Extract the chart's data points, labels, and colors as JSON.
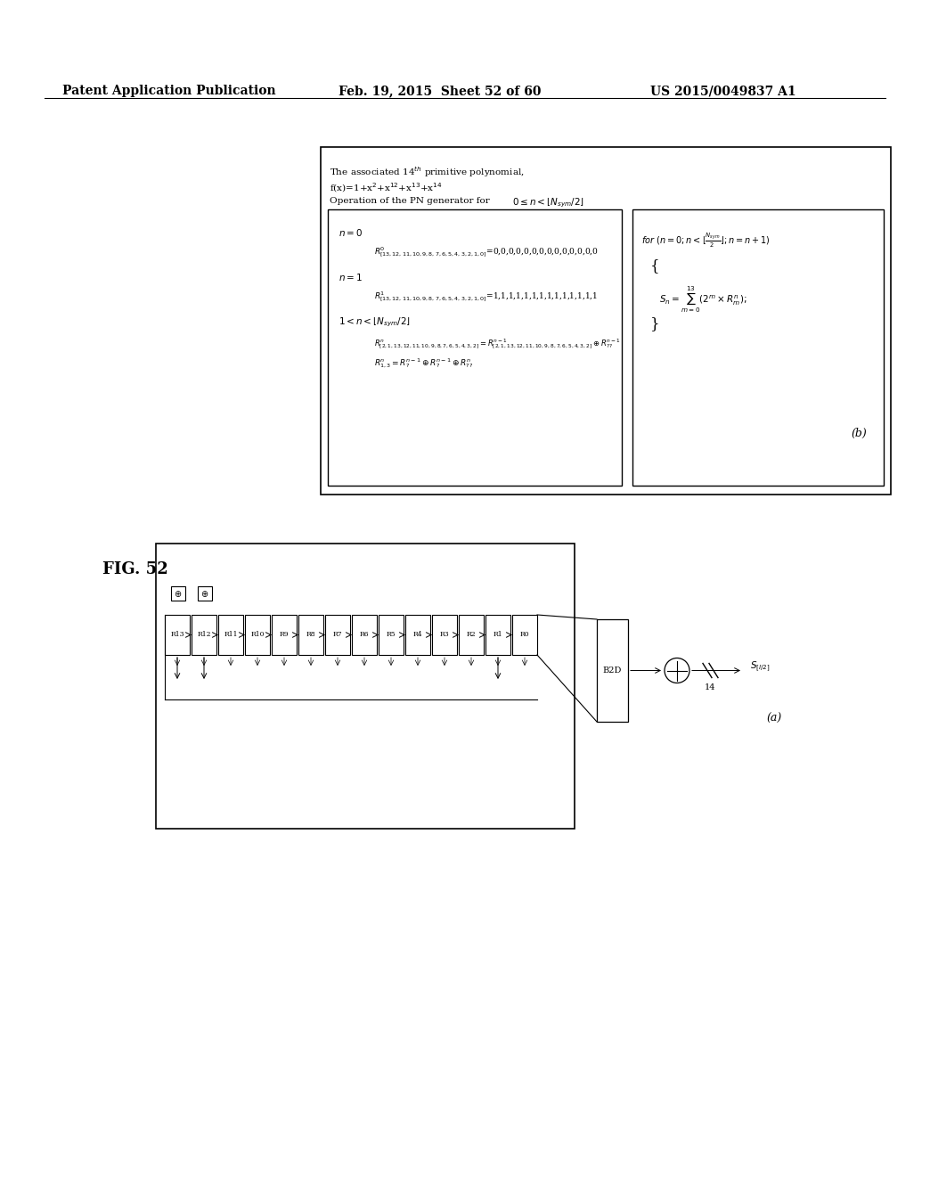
{
  "header_left": "Patent Application Publication",
  "header_mid": "Feb. 19, 2015  Sheet 52 of 60",
  "header_right": "US 2015/0049837 A1",
  "fig_label": "FIG. 52",
  "part_a_label": "(a)",
  "part_b_label": "(b)",
  "registers": [
    "R13",
    "R12",
    "R11",
    "R10",
    "R9",
    "R8",
    "R7",
    "R6",
    "R5",
    "R4",
    "R3",
    "R2",
    "R1",
    "R0"
  ],
  "bg_color": "#ffffff",
  "box_color": "#000000",
  "text_color": "#000000"
}
